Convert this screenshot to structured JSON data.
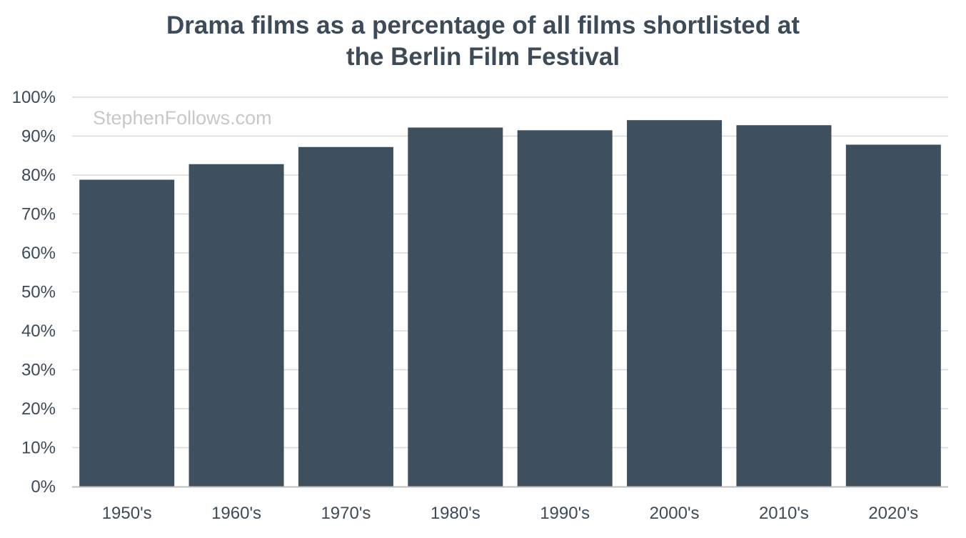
{
  "chart_data": {
    "type": "bar",
    "title_lines": [
      "Drama films as a percentage of all films shortlisted at",
      "the Berlin Film Festival"
    ],
    "watermark": "StephenFollows.com",
    "categories": [
      "1950's",
      "1960's",
      "1970's",
      "1980's",
      "1990's",
      "2000's",
      "2010's",
      "2020's"
    ],
    "values": [
      78.8,
      82.8,
      87.2,
      92.2,
      91.5,
      94.1,
      92.8,
      87.8
    ],
    "value_unit": "%",
    "ylim": [
      0,
      100
    ],
    "y_ticks": [
      0,
      10,
      20,
      30,
      40,
      50,
      60,
      70,
      80,
      90,
      100
    ],
    "y_tick_labels": [
      "0%",
      "10%",
      "20%",
      "30%",
      "40%",
      "50%",
      "60%",
      "70%",
      "80%",
      "90%",
      "100%"
    ],
    "grid": true,
    "legend": "none",
    "xlabel": "",
    "ylabel": "",
    "colors": {
      "bar": "#3e4f5e",
      "grid": "#d9d9d9",
      "axis": "#bfbfbf",
      "text": "#3d4a57",
      "watermark": "#c8c8c8"
    }
  }
}
